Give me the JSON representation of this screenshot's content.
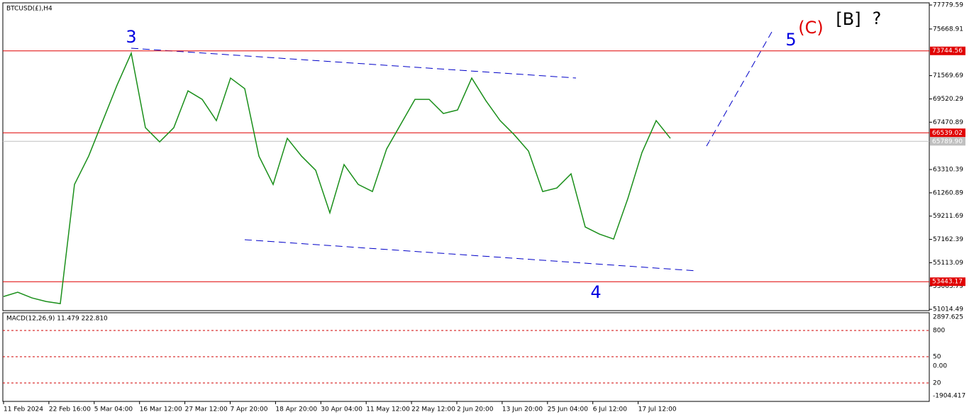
{
  "chart_data": {
    "type": "line",
    "title": "BTCUSD(£),H4",
    "color": "#1a8f1a",
    "values": [
      52141,
      52516,
      52017,
      51705,
      51518,
      61998,
      64493,
      67612,
      70731,
      73538,
      66988,
      65741,
      66988,
      70232,
      69483,
      67612,
      71355,
      70419,
      64493,
      61998,
      66053,
      64493,
      63245,
      59503,
      63744,
      61998,
      61374,
      65117,
      67300,
      69483,
      69483,
      68236,
      68548,
      71355,
      69359,
      67612,
      66364,
      64930,
      61374,
      61686,
      62934,
      58255,
      57631,
      57195,
      60750,
      64805,
      67612,
      66053
    ],
    "ylim": [
      50900,
      77970
    ],
    "yticks": [
      77779.59,
      75668.91,
      71569.69,
      69520.29,
      67470.89,
      63310.39,
      61260.89,
      59211.69,
      57162.39,
      55113.09,
      53063.79,
      51014.49
    ],
    "levels": [
      {
        "value": 73744.56,
        "color": "#e00000"
      },
      {
        "value": 66539.02,
        "color": "#e00000"
      },
      {
        "value": {
          "value": 65789.9,
          "label": "65789.90"
        },
        "color": "#c0c0c0"
      },
      {
        "value": 53443.17,
        "color": "#e00000"
      }
    ],
    "x_labels": [
      "11 Feb 2024",
      "22 Feb 16:00",
      "5 Mar 04:00",
      "16 Mar 12:00",
      "27 Mar 12:00",
      "7 Apr 20:00",
      "18 Apr 20:00",
      "30 Apr 04:00",
      "11 May 12:00",
      "22 May 12:00",
      "2 Jun 20:00",
      "13 Jun 20:00",
      "25 Jun 04:00",
      "6 Jul 12:00",
      "17 Jul 12:00"
    ],
    "annotations": [
      {
        "text": "3",
        "color": "#0000e0"
      },
      {
        "text": "4",
        "color": "#0000e0"
      },
      {
        "text": "5",
        "color": "#0000e0"
      },
      {
        "text": "(C)",
        "color": "#e00000"
      },
      {
        "text": "[B]",
        "color": "#000000"
      },
      {
        "text": "?",
        "color": "#000000"
      }
    ],
    "indicator": {
      "title": "MACD(12,26,9) 11.479 222.810",
      "yticks": [
        2897.625,
        800,
        50,
        {
          "value": 0,
          "label": "0.00"
        },
        20,
        -1904.417
      ]
    }
  }
}
